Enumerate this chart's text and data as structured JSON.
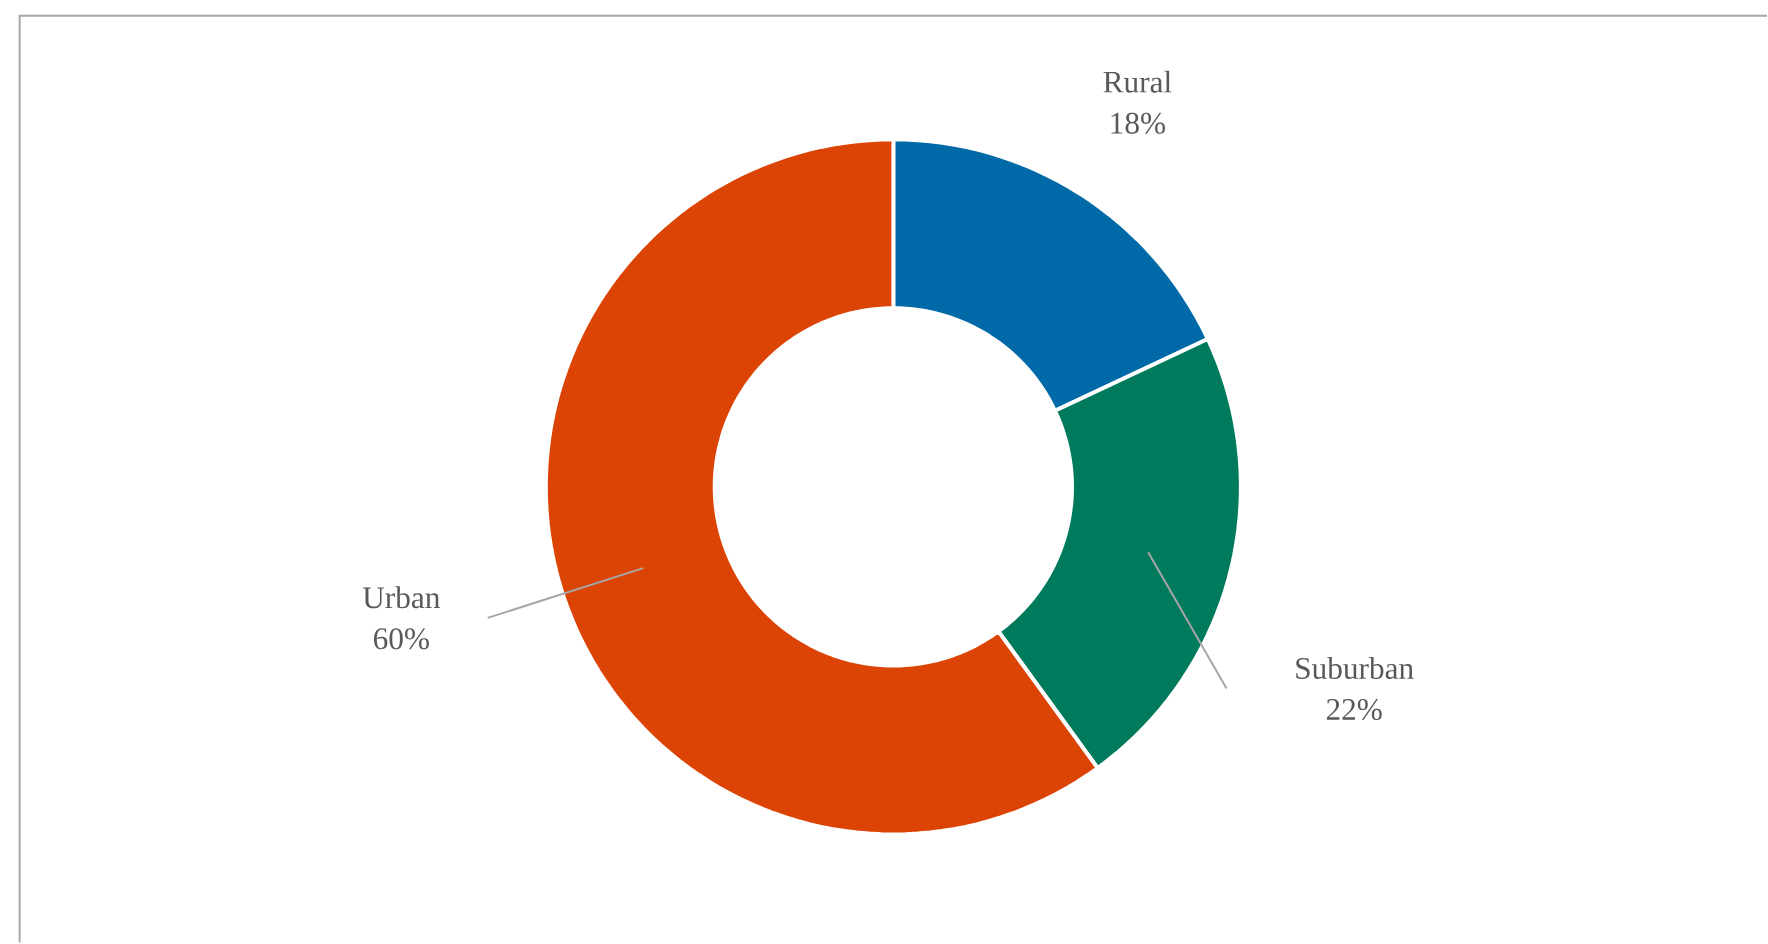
{
  "chart_data": {
    "type": "donut",
    "categories": [
      "Rural",
      "Suburban",
      "Urban"
    ],
    "values": [
      18,
      22,
      60
    ],
    "value_labels": [
      "18%",
      "22%",
      "60%"
    ],
    "colors": [
      "#0069a7",
      "#007a5c",
      "#dc4405"
    ]
  }
}
